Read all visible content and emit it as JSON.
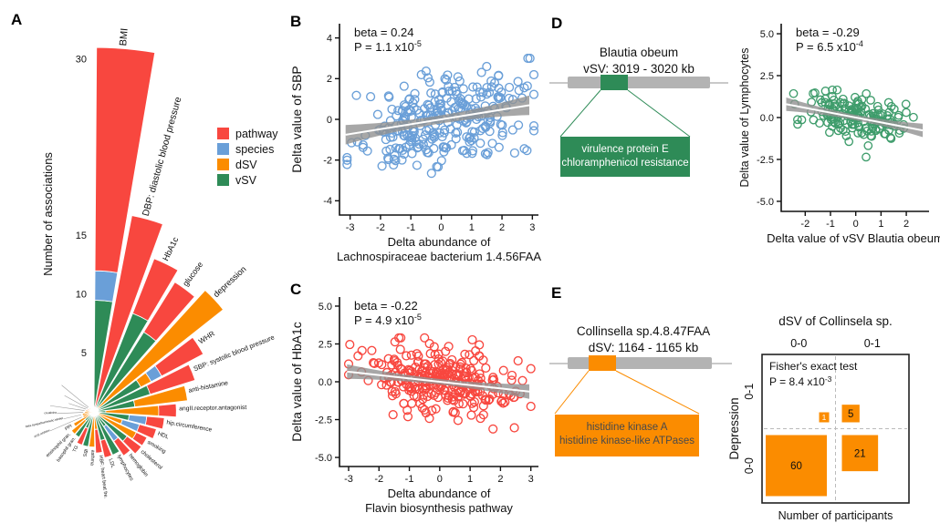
{
  "panels": {
    "a": {
      "letter": "A"
    },
    "b": {
      "letter": "B"
    },
    "c": {
      "letter": "C"
    },
    "d": {
      "letter": "D"
    },
    "e": {
      "letter": "E"
    }
  },
  "diagrams": {
    "d": {
      "title1": "Blautia obeum",
      "title2": "vSV: 3019 - 3020 kb",
      "box_line1": "virulence protein E",
      "box_line2": "chloramphenicol resistance",
      "color": "#2E8B57",
      "text_color": "#ffffff"
    },
    "e": {
      "title1": "Collinsella sp.4.8.47FAA",
      "title2": "dSV: 1164 - 1165 kb",
      "box_line1": "histidine kinase A",
      "box_line2": "histidine kinase-like ATPases",
      "color": "#FB8C00",
      "text_color": "#4a4a4a"
    }
  },
  "chart_data": [
    {
      "id": "fan",
      "type": "polar_bar",
      "ylabel": "Number of associations",
      "r_ticks": [
        5,
        10,
        15,
        30
      ],
      "legend": [
        "pathway",
        "species",
        "dSV",
        "vSV"
      ],
      "colors": {
        "pathway": "#F8473F",
        "species": "#6A9FD8",
        "dSV": "#FB8C00",
        "vSV": "#2E8B57"
      },
      "bars": [
        {
          "label": "BMI",
          "segments": [
            [
              "vSV",
              9.5
            ],
            [
              "species",
              2.5
            ],
            [
              "pathway",
              19
            ]
          ]
        },
        {
          "label": "DBP: diastolic blood pressure",
          "segments": [
            [
              "pathway",
              17
            ]
          ]
        },
        {
          "label": "HbA1c",
          "segments": [
            [
              "vSV",
              9
            ],
            [
              "pathway",
              5
            ]
          ]
        },
        {
          "label": "glucose",
          "segments": [
            [
              "vSV",
              8
            ],
            [
              "pathway",
              5
            ]
          ]
        },
        {
          "label": "depression",
          "segments": [
            [
              "dSV",
              14
            ]
          ]
        },
        {
          "label": "WHR",
          "segments": [
            [
              "vSV",
              4.5
            ],
            [
              "dSV",
              1
            ],
            [
              "species",
              1
            ],
            [
              "pathway",
              4
            ]
          ]
        },
        {
          "label": "SBP: systolic blood pressure",
          "segments": [
            [
              "vSV",
              5
            ],
            [
              "pathway",
              4
            ]
          ]
        },
        {
          "label": "anti-histamine",
          "segments": [
            [
              "vSV",
              3.5
            ],
            [
              "dSV",
              4.5
            ]
          ]
        },
        {
          "label": "angII.receptor.antagonist",
          "segments": [
            [
              "vSV",
              1
            ],
            [
              "dSV",
              4.5
            ],
            [
              "pathway",
              1.5
            ]
          ]
        },
        {
          "label": "hip.circumference",
          "segments": [
            [
              "vSV",
              3
            ],
            [
              "species",
              1.5
            ],
            [
              "pathway",
              1.5
            ]
          ]
        },
        {
          "label": "HDL",
          "segments": [
            [
              "dSV",
              2.5
            ],
            [
              "species",
              1.5
            ],
            [
              "pathway",
              1.5
            ]
          ]
        },
        {
          "label": "smoking",
          "segments": [
            [
              "dSV",
              4
            ],
            [
              "pathway",
              1
            ]
          ]
        },
        {
          "label": "cholesterol",
          "segments": [
            [
              "vSV",
              3.5
            ],
            [
              "pathway",
              1.5
            ]
          ]
        },
        {
          "label": "hemoglobin",
          "segments": [
            [
              "vSV",
              1.5
            ],
            [
              "species",
              1.5
            ],
            [
              "pathway",
              1.5
            ]
          ]
        },
        {
          "label": "lymphocytes",
          "segments": [
            [
              "vSV",
              4
            ]
          ]
        },
        {
          "label": "LDL",
          "segments": [
            [
              "vSV",
              2.5
            ],
            [
              "pathway",
              1.5
            ]
          ]
        },
        {
          "label": "HBF: heart beat fre.",
          "segments": [
            [
              "dSV",
              1.5
            ],
            [
              "pathway",
              2
            ]
          ]
        },
        {
          "label": "asthma",
          "segments": [
            [
              "dSV",
              3
            ]
          ]
        },
        {
          "label": "IBS",
          "segments": [
            [
              "vSV",
              3
            ]
          ]
        },
        {
          "label": "TG",
          "segments": [
            [
              "vSV",
              1.5
            ],
            [
              "pathway",
              1.5
            ]
          ]
        },
        {
          "label": "basophil gran.",
          "segments": [
            [
              "vSV",
              2.5
            ]
          ]
        },
        {
          "label": "eosinophil gran.",
          "segments": [
            [
              "vSV",
              1
            ],
            [
              "dSV",
              1.5
            ]
          ]
        },
        {
          "label": "PPI",
          "segments": [
            [
              "dSV",
              2
            ]
          ]
        },
        {
          "label": "ACE.inhibitor",
          "segments": [
            [
              "dSV",
              1
            ]
          ]
        },
        {
          "label": "beta.sympathomimetic.inhaler",
          "segments": [
            [
              "dSV",
              1
            ]
          ]
        },
        {
          "label": "creatinine",
          "segments": [
            [
              "dSV",
              0.8
            ]
          ]
        },
        {
          "label": "",
          "segments": [
            [
              "dSV",
              0.7
            ]
          ]
        },
        {
          "label": "",
          "segments": [
            [
              "pathway",
              0.6
            ]
          ]
        },
        {
          "label": "",
          "segments": [
            [
              "dSV",
              0.5
            ]
          ]
        },
        {
          "label": "",
          "segments": [
            [
              "dSV",
              0.5
            ]
          ]
        }
      ]
    },
    {
      "id": "scatter_b",
      "type": "scatter",
      "marker_color": "#6A9FD8",
      "stats": {
        "beta_label": "beta = 0.24",
        "p_base": "P = 1.1 x10",
        "p_exp": "-5"
      },
      "beta_value": 0.24,
      "n_points_approx": 295,
      "xlim": [
        -3.35,
        3.2
      ],
      "ylim": [
        -4.7,
        4.7
      ],
      "xticks": [
        {
          "v": -3,
          "t": "-3"
        },
        {
          "v": -2,
          "t": "-2"
        },
        {
          "v": -1,
          "t": "-1"
        },
        {
          "v": 0,
          "t": "0"
        },
        {
          "v": 1,
          "t": "1"
        },
        {
          "v": 2,
          "t": "2"
        },
        {
          "v": 3,
          "t": "3"
        }
      ],
      "yticks": [
        {
          "v": -4,
          "t": "-4"
        },
        {
          "v": -2,
          "t": "-2"
        },
        {
          "v": 0,
          "t": "0"
        },
        {
          "v": 2,
          "t": "2"
        },
        {
          "v": 4,
          "t": "4"
        }
      ],
      "xlabel": [
        "Delta abundance of",
        "Lachnospiraceae bacterium 1.4.56FAA"
      ],
      "ylabel": "Delta value of SBP"
    },
    {
      "id": "scatter_c",
      "type": "scatter",
      "marker_color": "#F8473F",
      "stats": {
        "beta_label": "beta = -0.22",
        "p_base": "P = 4.9 x10",
        "p_exp": "-5"
      },
      "beta_value": -0.22,
      "n_points_approx": 300,
      "xlim": [
        -3.3,
        3.25
      ],
      "ylim": [
        -5.6,
        5.6
      ],
      "xticks": [
        {
          "v": -3,
          "t": "-3"
        },
        {
          "v": -2,
          "t": "-2"
        },
        {
          "v": -1,
          "t": "-1"
        },
        {
          "v": 0,
          "t": "0"
        },
        {
          "v": 1,
          "t": "1"
        },
        {
          "v": 2,
          "t": "2"
        },
        {
          "v": 3,
          "t": "3"
        }
      ],
      "yticks": [
        {
          "v": -5,
          "t": "-5.0"
        },
        {
          "v": -2.5,
          "t": "-2.5"
        },
        {
          "v": 0,
          "t": "0.0"
        },
        {
          "v": 2.5,
          "t": "2.5"
        },
        {
          "v": 5,
          "t": "5.0"
        }
      ],
      "xlabel": [
        "Delta abundance of",
        "Flavin biosynthesis pathway"
      ],
      "ylabel": "Delta value of HbA1c"
    },
    {
      "id": "scatter_d",
      "type": "scatter",
      "marker_color": "#3E9C6B",
      "stats": {
        "beta_label": "beta = -0.29",
        "p_base": "P = 6.5 x10",
        "p_exp": "-4"
      },
      "beta_value": -0.29,
      "n_points_approx": 165,
      "xlim": [
        -2.95,
        2.9
      ],
      "ylim": [
        -5.6,
        5.6
      ],
      "xticks": [
        {
          "v": -2,
          "t": "-2"
        },
        {
          "v": -1,
          "t": "-1"
        },
        {
          "v": 0,
          "t": "0"
        },
        {
          "v": 1,
          "t": "1"
        },
        {
          "v": 2,
          "t": "2"
        }
      ],
      "yticks": [
        {
          "v": -5,
          "t": "-5.0"
        },
        {
          "v": -2.5,
          "t": "-2.5"
        },
        {
          "v": 0,
          "t": "0.0"
        },
        {
          "v": 2.5,
          "t": "2.5"
        },
        {
          "v": 5,
          "t": "5.0"
        }
      ],
      "xlabel": [
        "Delta value of vSV Blautia obeum"
      ],
      "ylabel": "Delta value of Lymphocytes"
    },
    {
      "id": "mosaic",
      "type": "mosaic",
      "title": "dSV of Collinsela sp.",
      "cols": [
        "0-0",
        "0-1"
      ],
      "rows": [
        "0-1",
        "0-0"
      ],
      "row_axis": "Depression",
      "xlabel": "Number of participants",
      "counts": {
        "top_left": 1,
        "top_right": 5,
        "bottom_left": 60,
        "bottom_right": 21
      },
      "fisher": {
        "line1": "Fisher's exact test",
        "p_base": "P = 8.4 x10",
        "p_exp": "-3"
      },
      "color": "#FB8C00"
    }
  ]
}
